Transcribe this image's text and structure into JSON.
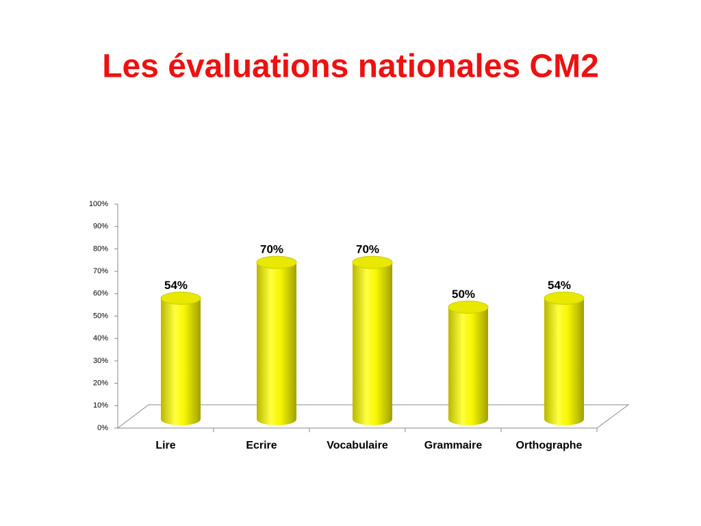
{
  "chart_data": {
    "type": "bar",
    "title": "Les évaluations nationales CM2",
    "categories": [
      "Lire",
      "Ecrire",
      "Vocabulaire",
      "Grammaire",
      "Orthographe"
    ],
    "values": [
      54,
      70,
      70,
      50,
      54
    ],
    "value_labels": [
      "54%",
      "70%",
      "70%",
      "50%",
      "54%"
    ],
    "color": "#ffff00",
    "ylim": [
      0,
      100
    ],
    "yticks": [
      {
        "value": 0,
        "label": "0%"
      },
      {
        "value": 10,
        "label": "10%"
      },
      {
        "value": 20,
        "label": "20%"
      },
      {
        "value": 30,
        "label": "30%"
      },
      {
        "value": 40,
        "label": "40%"
      },
      {
        "value": 50,
        "label": "50%"
      },
      {
        "value": 60,
        "label": "60%"
      },
      {
        "value": 70,
        "label": "70%"
      },
      {
        "value": 80,
        "label": "80%"
      },
      {
        "value": 90,
        "label": "90%"
      },
      {
        "value": 100,
        "label": "100%"
      }
    ]
  }
}
